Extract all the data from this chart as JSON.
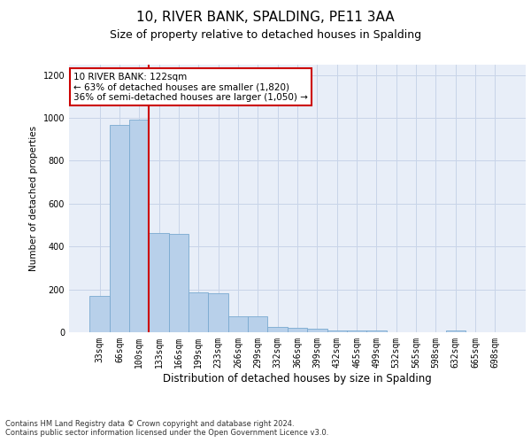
{
  "title": "10, RIVER BANK, SPALDING, PE11 3AA",
  "subtitle": "Size of property relative to detached houses in Spalding",
  "xlabel": "Distribution of detached houses by size in Spalding",
  "ylabel": "Number of detached properties",
  "categories": [
    "33sqm",
    "66sqm",
    "100sqm",
    "133sqm",
    "166sqm",
    "199sqm",
    "233sqm",
    "266sqm",
    "299sqm",
    "332sqm",
    "366sqm",
    "399sqm",
    "432sqm",
    "465sqm",
    "499sqm",
    "532sqm",
    "565sqm",
    "598sqm",
    "632sqm",
    "665sqm",
    "698sqm"
  ],
  "values": [
    170,
    968,
    990,
    462,
    458,
    185,
    183,
    75,
    73,
    25,
    20,
    15,
    10,
    10,
    8,
    0,
    0,
    0,
    8,
    0,
    0
  ],
  "bar_color": "#b8d0ea",
  "bar_edge_color": "#7aaad0",
  "vline_position": 2.5,
  "vline_color": "#cc0000",
  "annotation_text": "10 RIVER BANK: 122sqm\n← 63% of detached houses are smaller (1,820)\n36% of semi-detached houses are larger (1,050) →",
  "annotation_box_color": "#ffffff",
  "annotation_box_edge_color": "#cc0000",
  "ylim": [
    0,
    1250
  ],
  "yticks": [
    0,
    200,
    400,
    600,
    800,
    1000,
    1200
  ],
  "footer_line1": "Contains HM Land Registry data © Crown copyright and database right 2024.",
  "footer_line2": "Contains public sector information licensed under the Open Government Licence v3.0.",
  "bg_color": "#ffffff",
  "axes_bg_color": "#e8eef8",
  "grid_color": "#c8d4e8",
  "title_fontsize": 11,
  "subtitle_fontsize": 9,
  "annotation_fontsize": 7.5,
  "ylabel_fontsize": 7.5,
  "xlabel_fontsize": 8.5,
  "tick_fontsize": 7,
  "footer_fontsize": 6
}
